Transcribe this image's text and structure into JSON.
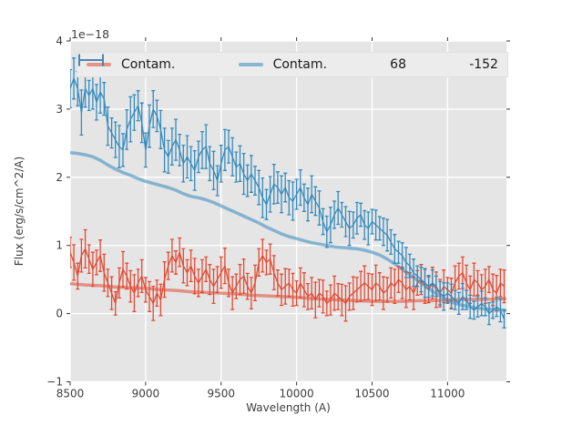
{
  "figure": {
    "offset_text": "1e−18",
    "xlabel": "Wavelength (A)",
    "ylabel": "Flux (erg/s/cm^2/A)",
    "xticks": [
      8500,
      9000,
      9500,
      10000,
      10500,
      11000
    ],
    "yticks": [
      -1,
      0,
      1,
      2,
      3,
      4
    ],
    "xlim": [
      8500,
      11390
    ],
    "ylim": [
      -1,
      4
    ],
    "plot_bg": "#e5e5e5",
    "grid_color": "#ffffff",
    "tick_color": "#333333",
    "label_color": "#3d3d3d"
  },
  "legend": {
    "entries": [
      {
        "label": "Contam.",
        "type": "line",
        "swatch_color": "#e69386"
      },
      {
        "label": "Contam.",
        "type": "line",
        "swatch_color": "#87b6d2"
      },
      {
        "label": "68",
        "type": "errorbar",
        "swatch_color": "#e24a33"
      },
      {
        "label": "-152",
        "type": "errorbar",
        "swatch_color": "#348abd"
      }
    ]
  },
  "chart_data": {
    "type": "line",
    "title": "",
    "xlabel": "Wavelength (A)",
    "ylabel": "Flux (erg/s/cm^2/A)",
    "y_scale_offset": "1e-18",
    "xlim": [
      8500,
      11390
    ],
    "ylim": [
      -1,
      4
    ],
    "grid": true,
    "legend_position": "upper horizontal row, 4 columns",
    "series": [
      {
        "name": "Contam.",
        "kind": "line",
        "color": "#e24a33",
        "alpha": 0.55,
        "linewidth": 3.5,
        "points": [
          [
            8500,
            0.44
          ],
          [
            8600,
            0.42
          ],
          [
            8700,
            0.41
          ],
          [
            8800,
            0.39
          ],
          [
            8900,
            0.38
          ],
          [
            9000,
            0.37
          ],
          [
            9100,
            0.35
          ],
          [
            9200,
            0.34
          ],
          [
            9300,
            0.32
          ],
          [
            9400,
            0.31
          ],
          [
            9500,
            0.3
          ],
          [
            9600,
            0.29
          ],
          [
            9700,
            0.27
          ],
          [
            9800,
            0.26
          ],
          [
            9900,
            0.25
          ],
          [
            10000,
            0.24
          ],
          [
            10100,
            0.22
          ],
          [
            10200,
            0.21
          ],
          [
            10300,
            0.2
          ],
          [
            10400,
            0.19
          ],
          [
            10500,
            0.18
          ],
          [
            10600,
            0.18
          ],
          [
            10700,
            0.18
          ],
          [
            10800,
            0.19
          ],
          [
            10900,
            0.19
          ],
          [
            11000,
            0.2
          ],
          [
            11100,
            0.21
          ],
          [
            11200,
            0.21
          ],
          [
            11300,
            0.21
          ],
          [
            11390,
            0.22
          ]
        ]
      },
      {
        "name": "Contam.",
        "kind": "line",
        "color": "#348abd",
        "alpha": 0.55,
        "linewidth": 3.5,
        "points": [
          [
            8500,
            2.36
          ],
          [
            8550,
            2.35
          ],
          [
            8600,
            2.33
          ],
          [
            8650,
            2.3
          ],
          [
            8700,
            2.25
          ],
          [
            8750,
            2.18
          ],
          [
            8800,
            2.12
          ],
          [
            8850,
            2.07
          ],
          [
            8900,
            2.03
          ],
          [
            8950,
            1.98
          ],
          [
            9000,
            1.94
          ],
          [
            9050,
            1.91
          ],
          [
            9100,
            1.88
          ],
          [
            9150,
            1.85
          ],
          [
            9200,
            1.81
          ],
          [
            9250,
            1.76
          ],
          [
            9300,
            1.72
          ],
          [
            9350,
            1.7
          ],
          [
            9400,
            1.67
          ],
          [
            9450,
            1.63
          ],
          [
            9500,
            1.58
          ],
          [
            9550,
            1.53
          ],
          [
            9600,
            1.48
          ],
          [
            9650,
            1.43
          ],
          [
            9700,
            1.38
          ],
          [
            9750,
            1.33
          ],
          [
            9800,
            1.27
          ],
          [
            9850,
            1.22
          ],
          [
            9900,
            1.17
          ],
          [
            9950,
            1.13
          ],
          [
            10000,
            1.1
          ],
          [
            10050,
            1.07
          ],
          [
            10100,
            1.04
          ],
          [
            10150,
            1.02
          ],
          [
            10200,
            1.0
          ],
          [
            10250,
            0.98
          ],
          [
            10300,
            0.97
          ],
          [
            10350,
            0.96
          ],
          [
            10400,
            0.95
          ],
          [
            10450,
            0.93
          ],
          [
            10500,
            0.9
          ],
          [
            10550,
            0.86
          ],
          [
            10600,
            0.8
          ],
          [
            10650,
            0.73
          ],
          [
            10700,
            0.65
          ],
          [
            10750,
            0.57
          ],
          [
            10800,
            0.49
          ],
          [
            10850,
            0.41
          ],
          [
            10900,
            0.33
          ],
          [
            10950,
            0.26
          ],
          [
            11000,
            0.2
          ],
          [
            11050,
            0.15
          ],
          [
            11100,
            0.12
          ],
          [
            11150,
            0.1
          ],
          [
            11200,
            0.08
          ],
          [
            11250,
            0.07
          ],
          [
            11300,
            0.06
          ],
          [
            11390,
            0.05
          ]
        ]
      },
      {
        "name": "68",
        "kind": "errorbar",
        "color": "#e24a33",
        "linewidth": 1.3,
        "capsize": 2,
        "x_start": 8500,
        "x_step": 25,
        "y": [
          0.9,
          0.75,
          0.55,
          0.85,
          0.95,
          0.8,
          0.65,
          0.75,
          0.85,
          0.6,
          0.45,
          0.3,
          0.15,
          0.45,
          0.65,
          0.55,
          0.4,
          0.3,
          0.45,
          0.55,
          0.35,
          0.25,
          0.15,
          0.3,
          0.2,
          0.5,
          0.7,
          0.85,
          0.75,
          0.9,
          0.7,
          0.6,
          0.7,
          0.55,
          0.45,
          0.55,
          0.65,
          0.5,
          0.4,
          0.5,
          0.6,
          0.7,
          0.45,
          0.3,
          0.4,
          0.5,
          0.55,
          0.4,
          0.3,
          0.45,
          0.75,
          0.85,
          0.75,
          0.8,
          0.6,
          0.45,
          0.35,
          0.4,
          0.45,
          0.35,
          0.3,
          0.45,
          0.35,
          0.25,
          0.3,
          0.2,
          0.3,
          0.25,
          0.15,
          0.2,
          0.3,
          0.25,
          0.2,
          0.15,
          0.25,
          0.3,
          0.35,
          0.4,
          0.45,
          0.4,
          0.35,
          0.45,
          0.4,
          0.3,
          0.35,
          0.45,
          0.4,
          0.5,
          0.45,
          0.35,
          0.4,
          0.3,
          0.45,
          0.5,
          0.4,
          0.35,
          0.45,
          0.35,
          0.3,
          0.4,
          0.35,
          0.3,
          0.45,
          0.55,
          0.6,
          0.45,
          0.35,
          0.5,
          0.45,
          0.35,
          0.4,
          0.5,
          0.35,
          0.3,
          0.45,
          0.4
        ],
        "err": [
          0.22,
          0.26,
          0.19,
          0.24,
          0.28,
          0.21,
          0.25,
          0.18,
          0.23,
          0.27,
          0.2,
          0.24,
          0.17,
          0.22,
          0.26,
          0.19,
          0.23,
          0.27,
          0.2,
          0.24,
          0.18,
          0.22,
          0.25,
          0.19,
          0.23,
          0.26,
          0.2,
          0.24,
          0.17,
          0.21,
          0.25,
          0.19,
          0.23,
          0.26,
          0.2,
          0.24,
          0.18,
          0.22,
          0.25,
          0.19,
          0.23,
          0.26,
          0.2,
          0.24,
          0.18,
          0.22,
          0.25,
          0.19,
          0.23,
          0.26,
          0.2,
          0.24,
          0.18,
          0.22,
          0.25,
          0.19,
          0.23,
          0.26,
          0.2,
          0.24,
          0.18,
          0.22,
          0.25,
          0.19,
          0.23,
          0.26,
          0.2,
          0.24,
          0.18,
          0.22,
          0.25,
          0.19,
          0.23,
          0.26,
          0.2,
          0.24,
          0.18,
          0.22,
          0.25,
          0.19,
          0.23,
          0.26,
          0.2,
          0.24,
          0.18,
          0.22,
          0.25,
          0.19,
          0.23,
          0.26,
          0.2,
          0.24,
          0.18,
          0.22,
          0.25,
          0.19,
          0.23,
          0.26,
          0.2,
          0.24,
          0.18,
          0.22,
          0.25,
          0.19,
          0.23,
          0.26,
          0.2,
          0.24,
          0.18,
          0.22,
          0.25,
          0.19,
          0.23,
          0.26,
          0.2,
          0.24
        ]
      },
      {
        "name": "-152",
        "kind": "errorbar",
        "color": "#348abd",
        "linewidth": 1.3,
        "capsize": 2,
        "x_start": 8500,
        "x_step": 25,
        "y": [
          3.3,
          3.45,
          3.3,
          2.95,
          3.3,
          3.2,
          3.3,
          3.1,
          3.25,
          3.15,
          2.75,
          2.65,
          2.55,
          2.45,
          2.4,
          2.7,
          2.85,
          2.95,
          3.05,
          2.8,
          2.4,
          2.75,
          3.0,
          2.9,
          2.7,
          2.4,
          2.3,
          2.45,
          2.55,
          2.4,
          2.2,
          2.3,
          2.2,
          2.1,
          2.3,
          2.4,
          2.45,
          2.2,
          2.1,
          1.95,
          2.2,
          2.4,
          2.45,
          2.3,
          2.15,
          2.2,
          2.05,
          1.95,
          2.05,
          1.95,
          1.85,
          1.7,
          1.6,
          1.75,
          1.9,
          1.85,
          1.75,
          1.85,
          1.7,
          1.65,
          1.75,
          1.85,
          1.7,
          1.6,
          1.75,
          1.65,
          1.55,
          1.35,
          1.2,
          1.3,
          1.45,
          1.55,
          1.45,
          1.35,
          1.25,
          1.3,
          1.4,
          1.45,
          1.3,
          1.25,
          1.35,
          1.3,
          1.25,
          1.2,
          1.15,
          1.05,
          0.95,
          0.9,
          0.85,
          0.75,
          0.7,
          0.6,
          0.55,
          0.5,
          0.45,
          0.4,
          0.45,
          0.4,
          0.3,
          0.25,
          0.3,
          0.25,
          0.2,
          0.15,
          0.25,
          0.2,
          0.1,
          0.05,
          0.1,
          0.15,
          0.1,
          0.0,
          0.05,
          0.1,
          0.05,
          -0.08
        ],
        "err": [
          0.28,
          0.3,
          0.25,
          0.33,
          0.27,
          0.22,
          0.3,
          0.26,
          0.31,
          0.24,
          0.28,
          0.22,
          0.26,
          0.31,
          0.24,
          0.29,
          0.33,
          0.26,
          0.22,
          0.29,
          0.25,
          0.31,
          0.27,
          0.23,
          0.28,
          0.32,
          0.24,
          0.27,
          0.3,
          0.23,
          0.27,
          0.31,
          0.25,
          0.29,
          0.23,
          0.27,
          0.32,
          0.25,
          0.28,
          0.22,
          0.27,
          0.3,
          0.24,
          0.28,
          0.22,
          0.26,
          0.3,
          0.23,
          0.27,
          0.21,
          0.25,
          0.29,
          0.22,
          0.26,
          0.29,
          0.23,
          0.27,
          0.21,
          0.25,
          0.28,
          0.22,
          0.26,
          0.2,
          0.24,
          0.27,
          0.21,
          0.25,
          0.19,
          0.23,
          0.26,
          0.2,
          0.24,
          0.18,
          0.22,
          0.25,
          0.19,
          0.23,
          0.17,
          0.21,
          0.24,
          0.18,
          0.22,
          0.17,
          0.2,
          0.23,
          0.18,
          0.21,
          0.16,
          0.19,
          0.22,
          0.17,
          0.2,
          0.15,
          0.18,
          0.21,
          0.16,
          0.19,
          0.15,
          0.17,
          0.2,
          0.15,
          0.18,
          0.14,
          0.16,
          0.19,
          0.14,
          0.17,
          0.13,
          0.15,
          0.18,
          0.13,
          0.16,
          0.12,
          0.14,
          0.17,
          0.13
        ]
      }
    ]
  }
}
